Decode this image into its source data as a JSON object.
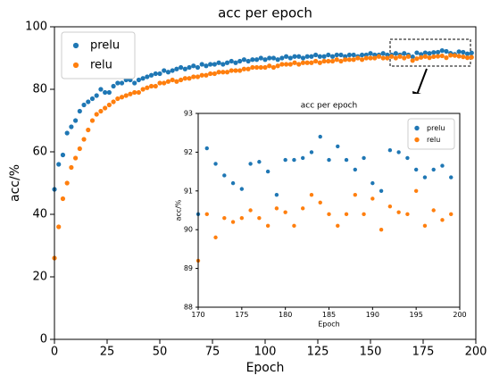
{
  "chart_data": [
    {
      "type": "scatter",
      "title": "acc per epoch",
      "xlabel": "Epoch",
      "ylabel": "acc/%",
      "x": [
        0,
        2,
        4,
        6,
        8,
        10,
        12,
        14,
        16,
        18,
        20,
        22,
        24,
        26,
        28,
        30,
        32,
        34,
        36,
        38,
        40,
        42,
        44,
        46,
        48,
        50,
        52,
        54,
        56,
        58,
        60,
        62,
        64,
        66,
        68,
        70,
        72,
        74,
        76,
        78,
        80,
        82,
        84,
        86,
        88,
        90,
        92,
        94,
        96,
        98,
        100,
        102,
        104,
        106,
        108,
        110,
        112,
        114,
        116,
        118,
        120,
        122,
        124,
        126,
        128,
        130,
        132,
        134,
        136,
        138,
        140,
        142,
        144,
        146,
        148,
        150,
        152,
        154,
        156,
        158,
        160,
        162,
        164,
        166,
        168,
        170,
        172,
        174,
        176,
        178,
        180,
        182,
        184,
        186,
        188,
        190,
        192,
        194,
        196,
        198
      ],
      "series": [
        {
          "name": "prelu",
          "color": "#1f77b4",
          "values": [
            48,
            56,
            59,
            66,
            68,
            70,
            73,
            75,
            76,
            77,
            78,
            80,
            79,
            79,
            81,
            82,
            82,
            83,
            83,
            82,
            83,
            83.5,
            84,
            84.5,
            85,
            85,
            86,
            85.5,
            86,
            86.5,
            87,
            86.5,
            87,
            87.5,
            87,
            88,
            87.5,
            88,
            88,
            88.5,
            88,
            88.5,
            89,
            88.5,
            89,
            89.5,
            89,
            89.5,
            89.5,
            90,
            89.5,
            90,
            90,
            89.5,
            90,
            90.5,
            90,
            90.5,
            90.5,
            90,
            90.5,
            90.5,
            91,
            90.5,
            90.5,
            91,
            90.5,
            91,
            91,
            90.5,
            91,
            91,
            90.5,
            91,
            91,
            91.5,
            91,
            91,
            91.5,
            91,
            91,
            91.5,
            91,
            91.5,
            91,
            90.4,
            91.7,
            91.2,
            91.7,
            91.5,
            91.8,
            91.85,
            92.4,
            92.15,
            91.55,
            91.2,
            92.05,
            91.85,
            91.35,
            91.65
          ]
        },
        {
          "name": "relu",
          "color": "#ff7f0e",
          "values": [
            26,
            36,
            45,
            50,
            55,
            58,
            61,
            64,
            67,
            70,
            72,
            73,
            74,
            75,
            76,
            77,
            77.5,
            78,
            78.5,
            79,
            79,
            80,
            80.5,
            81,
            81,
            82,
            82,
            82.5,
            83,
            82.5,
            83,
            83.5,
            83.5,
            84,
            84,
            84.5,
            84.5,
            85,
            85,
            85.5,
            85.5,
            85.5,
            86,
            86,
            86,
            86.5,
            86.5,
            87,
            87,
            87,
            87,
            87.5,
            87,
            87.5,
            88,
            88,
            88,
            88.5,
            88,
            88.5,
            88.5,
            88.5,
            89,
            88.5,
            89,
            89,
            89,
            89.5,
            89,
            89.5,
            89.5,
            89.5,
            90,
            89.5,
            90,
            90,
            90,
            90.5,
            90,
            90,
            90.5,
            90,
            90.5,
            90,
            90.5,
            89.2,
            89.8,
            90.2,
            90.5,
            90.1,
            90.45,
            90.55,
            90.7,
            90.1,
            90.9,
            90.8,
            90.6,
            90.4,
            90.1,
            90.25
          ]
        }
      ],
      "xlim": [
        0,
        200
      ],
      "xticks": [
        0,
        25,
        50,
        75,
        100,
        125,
        150,
        175,
        200
      ],
      "ylim": [
        0,
        100
      ],
      "yticks": [
        0,
        20,
        40,
        60,
        80,
        100
      ],
      "legend": "upper left"
    },
    {
      "type": "scatter",
      "title": "acc per epoch",
      "xlabel": "Epoch",
      "ylabel": "acc/%",
      "x": [
        170,
        171,
        172,
        173,
        174,
        175,
        176,
        177,
        178,
        179,
        180,
        181,
        182,
        183,
        184,
        185,
        186,
        187,
        188,
        189,
        190,
        191,
        192,
        193,
        194,
        195,
        196,
        197,
        198,
        199
      ],
      "series": [
        {
          "name": "prelu",
          "color": "#1f77b4",
          "values": [
            90.4,
            92.1,
            91.7,
            91.4,
            91.2,
            91.05,
            91.7,
            91.75,
            91.5,
            90.9,
            91.8,
            91.8,
            91.85,
            92.0,
            92.4,
            91.8,
            92.15,
            91.8,
            91.55,
            91.85,
            91.2,
            91.0,
            92.05,
            92.0,
            91.85,
            91.55,
            91.35,
            91.55,
            91.65,
            91.35
          ]
        },
        {
          "name": "relu",
          "color": "#ff7f0e",
          "values": [
            89.2,
            90.4,
            89.8,
            90.3,
            90.2,
            90.3,
            90.5,
            90.3,
            90.1,
            90.55,
            90.45,
            90.1,
            90.55,
            90.9,
            90.7,
            90.4,
            90.1,
            90.4,
            90.9,
            90.4,
            90.8,
            90.0,
            90.6,
            90.45,
            90.4,
            91.0,
            90.1,
            90.5,
            90.25,
            90.4
          ]
        }
      ],
      "xlim": [
        170,
        200
      ],
      "xticks": [
        170,
        175,
        180,
        185,
        190,
        195,
        200
      ],
      "ylim": [
        88,
        93
      ],
      "yticks": [
        88,
        89,
        90,
        91,
        92,
        93
      ],
      "legend": "upper right"
    }
  ]
}
